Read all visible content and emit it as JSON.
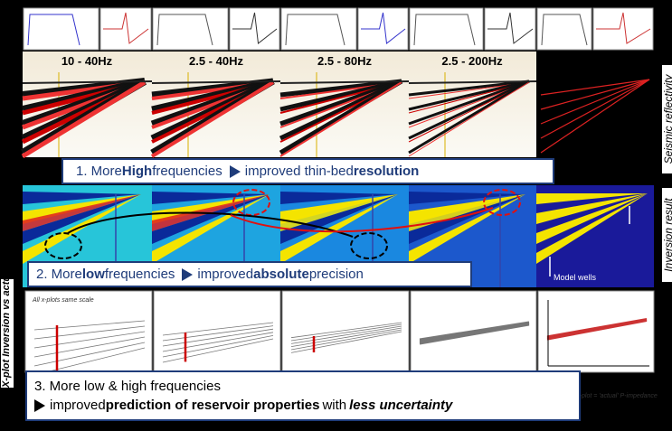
{
  "columns": [
    "10 - 40Hz",
    "2.5 - 40Hz",
    "2.5 - 80Hz",
    "2.5 - 200Hz"
  ],
  "side_labels": {
    "reflectivity": "Seismic reflectivity",
    "inversion": "Inversion result",
    "xplot": "X-plot Inversion vs actual"
  },
  "banner1": [
    "1. More ",
    "High",
    " frequencies",
    "improved thin-bed ",
    "resolution"
  ],
  "banner2": [
    "2. More ",
    "low",
    " frequencies",
    "improved ",
    "absolute",
    " precision"
  ],
  "banner3": {
    "line1": "3. More low & high frequencies",
    "line2": [
      "improved ",
      "prediction of reservoir properties",
      " with ",
      "less uncertainty"
    ]
  },
  "notes": {
    "xplot_scale": "All x-plots same scale",
    "model_wells": "Model wells",
    "xplot_axis": "X-plot = 'actual' P-impedance"
  }
}
